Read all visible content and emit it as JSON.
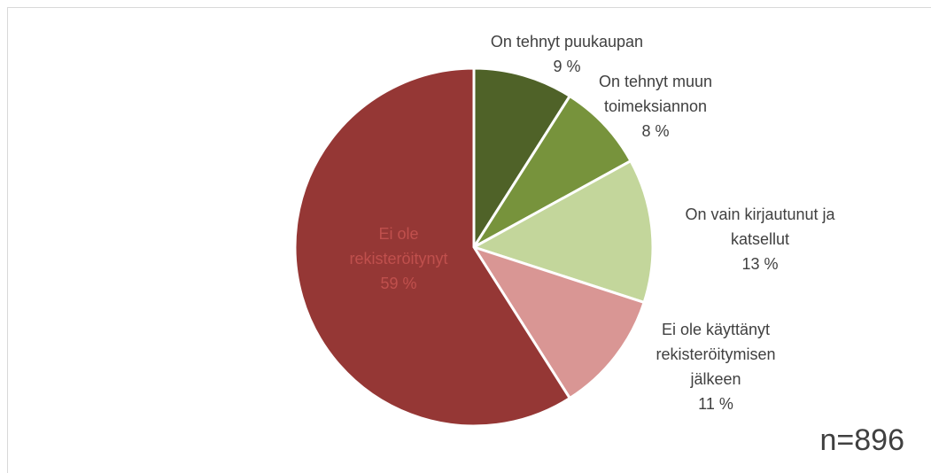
{
  "chart_data": {
    "type": "pie",
    "categories": [
      "On tehnyt puukaupan",
      "On tehnyt muun toimeksiannon",
      "On vain kirjautunut ja katsellut",
      "Ei ole käyttänyt rekisteröitymisen jälkeen",
      "Ei ole rekisteröitynyt"
    ],
    "values": [
      9,
      8,
      13,
      11,
      59
    ],
    "value_labels": [
      "9 %",
      "8 %",
      "13 %",
      "11 %",
      "59 %"
    ],
    "colors": [
      "#4f6228",
      "#77933c",
      "#c3d69b",
      "#d99694",
      "#953735"
    ],
    "annotation": "n=896"
  }
}
